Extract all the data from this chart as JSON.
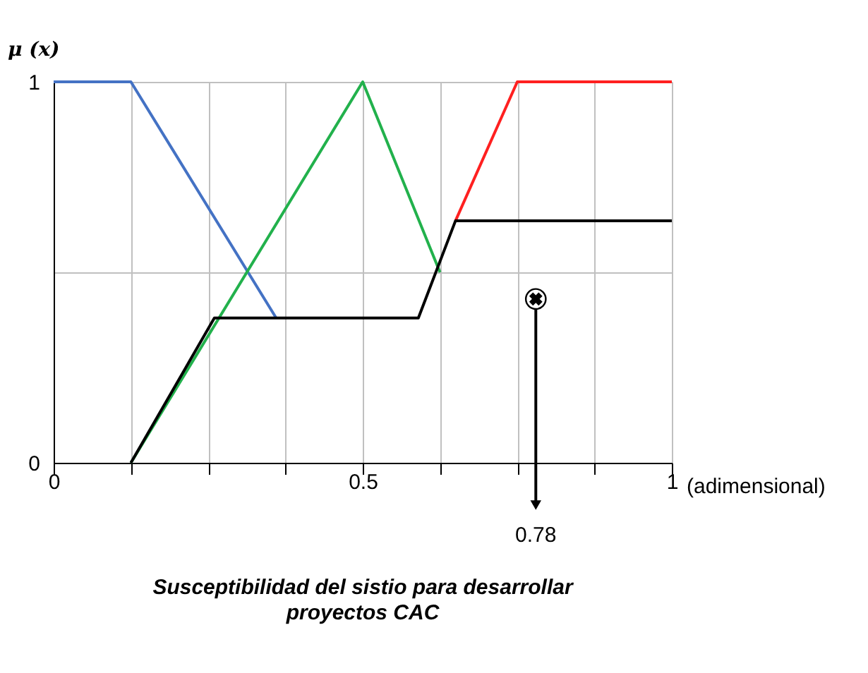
{
  "chart_data": {
    "type": "line",
    "title": "Susceptibilidad del sistio para desarrollar proyectos CAC",
    "xlabel": "(adimensional)",
    "ylabel": "μ (x)",
    "xlim": [
      0,
      1
    ],
    "ylim": [
      0,
      1
    ],
    "xticks": [
      0,
      {
        "value": 0.125,
        "label": null
      },
      {
        "value": 0.25,
        "label": null
      },
      {
        "value": 0.375,
        "label": null
      },
      0.5,
      {
        "value": 0.625,
        "label": null
      },
      {
        "value": 0.75,
        "label": null
      },
      {
        "value": 0.875,
        "label": null
      },
      1
    ],
    "yticks": [
      0,
      {
        "value": 0.5,
        "label": null
      },
      1
    ],
    "grid": true,
    "legend": false,
    "line_style": "solid",
    "marker": "none",
    "series": [
      {
        "color": "#4472c4",
        "x": [
          0,
          0.125,
          0.36
        ],
        "values": [
          1,
          1,
          0.38
        ]
      },
      {
        "color": "#22b14c",
        "x": [
          0.125,
          0.5,
          0.625
        ],
        "values": [
          0,
          1,
          0.5
        ]
      },
      {
        "color": "#ff2020",
        "x": [
          0.65,
          0.75,
          1
        ],
        "values": [
          0.635,
          1,
          1
        ]
      },
      {
        "color": "#000000",
        "x": [
          0.125,
          0.26,
          0.59,
          0.65,
          1
        ],
        "values": [
          0,
          0.38,
          0.38,
          0.635,
          0.635
        ]
      }
    ],
    "annotations": [
      {
        "text": "0.78",
        "x": 0.78,
        "y": 0.43
      }
    ]
  }
}
